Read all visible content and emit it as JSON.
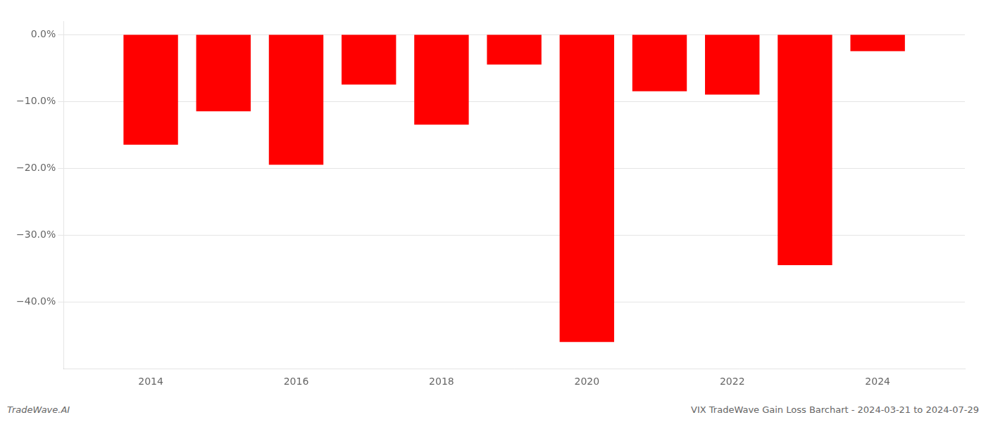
{
  "chart_data": {
    "type": "bar",
    "x": [
      2014,
      2015,
      2016,
      2017,
      2018,
      2019,
      2020,
      2021,
      2022,
      2023,
      2024
    ],
    "values": [
      -16.5,
      -11.5,
      -19.5,
      -7.5,
      -13.5,
      -4.5,
      -46.0,
      -8.5,
      -9.0,
      -34.5,
      -2.5
    ],
    "color": "#ff0000",
    "xlim": [
      2012.8,
      2025.2
    ],
    "xticks": [
      2014,
      2016,
      2018,
      2020,
      2022,
      2024
    ],
    "ylim": [
      -50,
      2
    ],
    "yticks": [
      {
        "value": 0,
        "label": "0.0%"
      },
      {
        "value": -10,
        "label": "−10.0%"
      },
      {
        "value": -20,
        "label": "−20.0%"
      },
      {
        "value": -30,
        "label": "−30.0%"
      },
      {
        "value": -40,
        "label": "−40.0%"
      }
    ],
    "grid": true,
    "annotations": [
      "TradeWave.AI",
      "VIX TradeWave Gain Loss Barchart - 2024-03-21 to 2024-07-29"
    ]
  }
}
